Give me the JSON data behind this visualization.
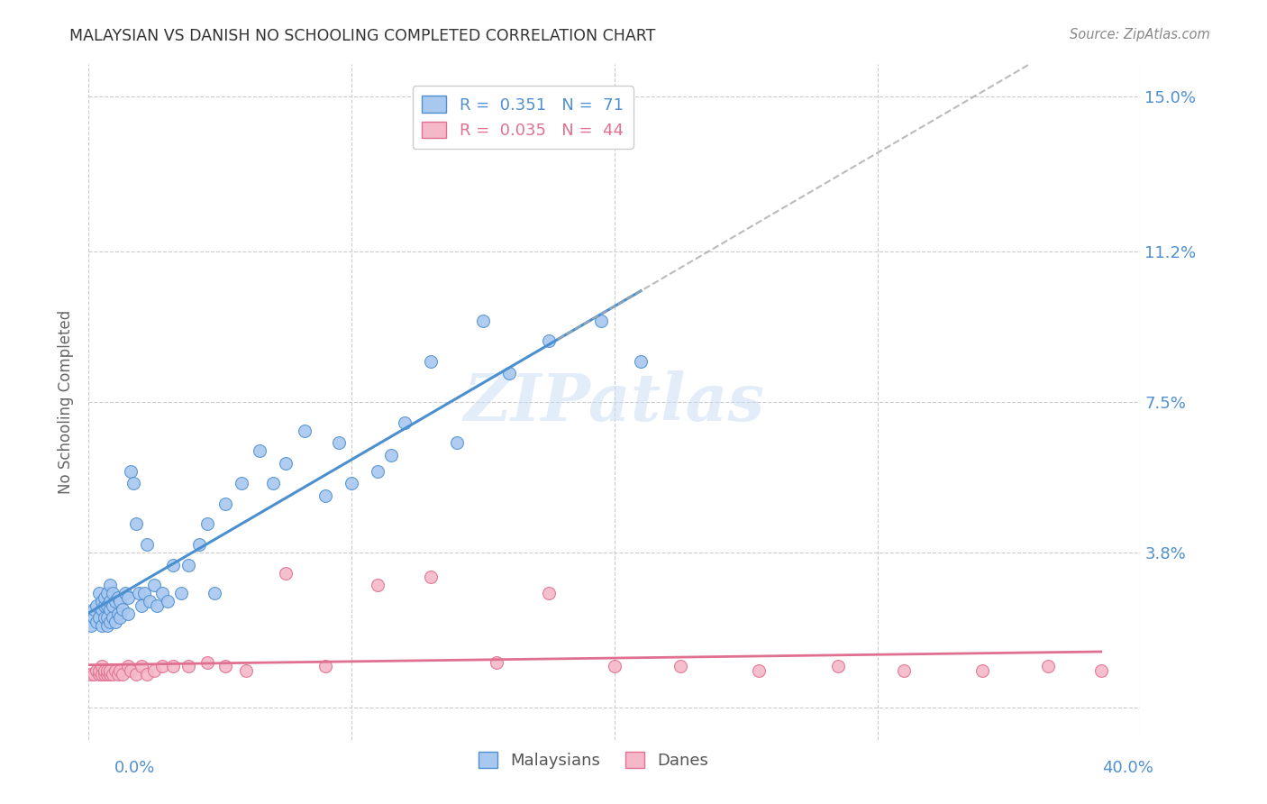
{
  "title": "MALAYSIAN VS DANISH NO SCHOOLING COMPLETED CORRELATION CHART",
  "source": "Source: ZipAtlas.com",
  "ylabel": "No Schooling Completed",
  "yticks": [
    0.0,
    0.038,
    0.075,
    0.112,
    0.15
  ],
  "ytick_labels": [
    "",
    "3.8%",
    "7.5%",
    "11.2%",
    "15.0%"
  ],
  "xlim": [
    0.0,
    0.4
  ],
  "ylim": [
    -0.008,
    0.158
  ],
  "malaysian_color": "#a8c8f0",
  "danish_color": "#f5b8c8",
  "malaysian_edge_color": "#5090d0",
  "danish_edge_color": "#e07090",
  "malaysian_line_color": "#4a90d0",
  "danish_line_color": "#e07090",
  "dashed_line_color": "#aaaaaa",
  "background_color": "#ffffff",
  "grid_color": "#cccccc",
  "watermark_color": "#c8ddf5",
  "title_color": "#333333",
  "source_color": "#888888",
  "ytick_color": "#5090d0",
  "xtick_color": "#5090d0",
  "legend_entry1": "R =  0.351   N =  71",
  "legend_entry2": "R =  0.035   N =  44",
  "legend_color1": "#5090d0",
  "legend_color2": "#e07090",
  "malaysian_x": [
    0.001,
    0.002,
    0.002,
    0.003,
    0.003,
    0.004,
    0.004,
    0.005,
    0.005,
    0.005,
    0.006,
    0.006,
    0.006,
    0.007,
    0.007,
    0.007,
    0.007,
    0.008,
    0.008,
    0.008,
    0.008,
    0.009,
    0.009,
    0.009,
    0.01,
    0.01,
    0.011,
    0.011,
    0.012,
    0.012,
    0.013,
    0.014,
    0.015,
    0.015,
    0.016,
    0.017,
    0.018,
    0.019,
    0.02,
    0.021,
    0.022,
    0.023,
    0.025,
    0.026,
    0.028,
    0.03,
    0.032,
    0.035,
    0.038,
    0.042,
    0.045,
    0.048,
    0.052,
    0.058,
    0.065,
    0.07,
    0.075,
    0.082,
    0.09,
    0.095,
    0.1,
    0.11,
    0.115,
    0.12,
    0.13,
    0.14,
    0.15,
    0.16,
    0.175,
    0.195,
    0.21
  ],
  "malaysian_y": [
    0.02,
    0.022,
    0.024,
    0.021,
    0.025,
    0.022,
    0.028,
    0.02,
    0.024,
    0.026,
    0.022,
    0.025,
    0.027,
    0.02,
    0.022,
    0.025,
    0.028,
    0.021,
    0.024,
    0.026,
    0.03,
    0.022,
    0.025,
    0.028,
    0.021,
    0.026,
    0.023,
    0.027,
    0.022,
    0.026,
    0.024,
    0.028,
    0.023,
    0.027,
    0.058,
    0.055,
    0.045,
    0.028,
    0.025,
    0.028,
    0.04,
    0.026,
    0.03,
    0.025,
    0.028,
    0.026,
    0.035,
    0.028,
    0.035,
    0.04,
    0.045,
    0.028,
    0.05,
    0.055,
    0.063,
    0.055,
    0.06,
    0.068,
    0.052,
    0.065,
    0.055,
    0.058,
    0.062,
    0.07,
    0.085,
    0.065,
    0.095,
    0.082,
    0.09,
    0.095,
    0.085
  ],
  "danish_x": [
    0.001,
    0.002,
    0.003,
    0.004,
    0.004,
    0.005,
    0.005,
    0.006,
    0.006,
    0.007,
    0.007,
    0.008,
    0.008,
    0.009,
    0.01,
    0.011,
    0.012,
    0.013,
    0.015,
    0.016,
    0.018,
    0.02,
    0.022,
    0.025,
    0.028,
    0.032,
    0.038,
    0.045,
    0.052,
    0.06,
    0.075,
    0.09,
    0.11,
    0.13,
    0.155,
    0.175,
    0.2,
    0.225,
    0.255,
    0.285,
    0.31,
    0.34,
    0.365,
    0.385
  ],
  "danish_y": [
    0.008,
    0.008,
    0.009,
    0.008,
    0.009,
    0.008,
    0.01,
    0.008,
    0.009,
    0.008,
    0.009,
    0.008,
    0.009,
    0.008,
    0.009,
    0.008,
    0.009,
    0.008,
    0.01,
    0.009,
    0.008,
    0.01,
    0.008,
    0.009,
    0.01,
    0.01,
    0.01,
    0.011,
    0.01,
    0.009,
    0.033,
    0.01,
    0.03,
    0.032,
    0.011,
    0.028,
    0.01,
    0.01,
    0.009,
    0.01,
    0.009,
    0.009,
    0.01,
    0.009
  ],
  "malaysian_trend_x": [
    0.0,
    0.22
  ],
  "danish_trend_x": [
    0.0,
    0.385
  ],
  "dashed_trend_x": [
    0.18,
    0.4
  ]
}
